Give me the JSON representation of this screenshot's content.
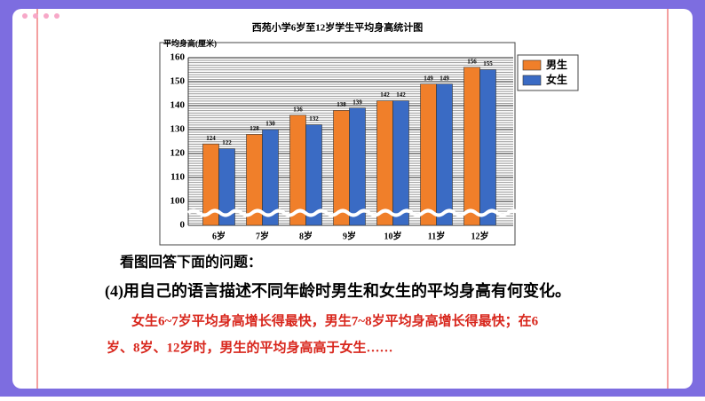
{
  "chart_data": {
    "type": "bar",
    "title": "西苑小学6岁至12岁学生平均身高统计图",
    "y_label": "平均身高(厘米)",
    "categories": [
      "6岁",
      "7岁",
      "8岁",
      "9岁",
      "10岁",
      "11岁",
      "12岁"
    ],
    "series": [
      {
        "name": "男生",
        "color": "#f07f2a",
        "values": [
          124,
          128,
          136,
          138,
          142,
          149,
          156
        ]
      },
      {
        "name": "女生",
        "color": "#3a6bc4",
        "values": [
          122,
          130,
          132,
          139,
          142,
          149,
          155
        ]
      }
    ],
    "ylim": [
      0,
      160
    ],
    "yticks": [
      0,
      100,
      110,
      120,
      130,
      140,
      150,
      160
    ],
    "axis_break": true,
    "grid": true,
    "legend": "right"
  },
  "slide": {
    "intro": "看图回答下面的问题：",
    "question": "(4)用自己的语言描述不同年龄时男生和女生的平均身高有何变化。",
    "answer": [
      "女生6~7岁平均身高增长得最快，男生7~8岁平均身高增长得最快；在6",
      "岁、8岁、12岁时，男生的平均身高高于女生……"
    ]
  }
}
